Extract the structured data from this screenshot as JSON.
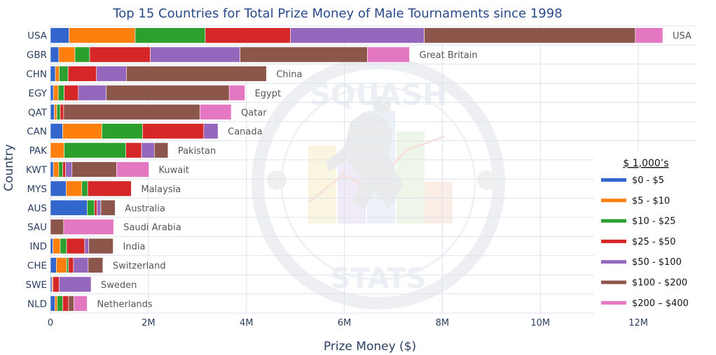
{
  "chart_data": {
    "type": "bar",
    "orientation": "horizontal",
    "stacked": true,
    "title": "Top 15 Countries for Total Prize Money of Male Tournaments since 1998",
    "xlabel": "Prize Money ($)",
    "ylabel": "Country",
    "xlim": [
      0,
      13200000
    ],
    "x_ticks": [
      {
        "value": 0,
        "label": "0"
      },
      {
        "value": 2000000,
        "label": "2M"
      },
      {
        "value": 4000000,
        "label": "4M"
      },
      {
        "value": 6000000,
        "label": "6M"
      },
      {
        "value": 8000000,
        "label": "8M"
      },
      {
        "value": 10000000,
        "label": "10M"
      },
      {
        "value": 12000000,
        "label": "12M"
      }
    ],
    "grid": true,
    "legend_title": "$ 1,000’s",
    "legend_position": "right",
    "categories": [
      "USA",
      "GBR",
      "CHN",
      "EGY",
      "QAT",
      "CAN",
      "PAK",
      "KWT",
      "MYS",
      "AUS",
      "SAU",
      "IND",
      "CHE",
      "SWE",
      "NLD"
    ],
    "bar_labels": [
      "USA",
      "Great Britain",
      "China",
      "Egypt",
      "Qatar",
      "Canada",
      "Pakistan",
      "Kuwait",
      "Malaysia",
      "Australia",
      "Saudi Arabia",
      "India",
      "Switzerland",
      "Sweden",
      "Netherlands"
    ],
    "series": [
      {
        "name": "$0 - $5",
        "color": "#3366cc",
        "values": [
          380000,
          170000,
          100000,
          60000,
          80000,
          250000,
          0,
          60000,
          320000,
          750000,
          0,
          50000,
          120000,
          30000,
          90000
        ]
      },
      {
        "name": "$5 - $10",
        "color": "#ff7f0e",
        "values": [
          1350000,
          330000,
          80000,
          100000,
          50000,
          800000,
          280000,
          110000,
          320000,
          0,
          0,
          150000,
          210000,
          20000,
          50000
        ]
      },
      {
        "name": "$10 - $25",
        "color": "#2ca02c",
        "values": [
          1430000,
          300000,
          180000,
          120000,
          70000,
          830000,
          1260000,
          80000,
          120000,
          150000,
          0,
          130000,
          40000,
          0,
          110000
        ]
      },
      {
        "name": "$25 - $50",
        "color": "#d62728",
        "values": [
          1740000,
          1240000,
          580000,
          290000,
          70000,
          1250000,
          320000,
          60000,
          890000,
          50000,
          0,
          370000,
          100000,
          130000,
          120000
        ]
      },
      {
        "name": "$50 - $100",
        "color": "#9467bd",
        "values": [
          2730000,
          1830000,
          610000,
          570000,
          0,
          290000,
          260000,
          130000,
          0,
          80000,
          0,
          80000,
          300000,
          650000,
          0
        ]
      },
      {
        "name": "$100 - $200",
        "color": "#8c564b",
        "values": [
          4310000,
          2600000,
          2860000,
          2510000,
          2780000,
          0,
          280000,
          910000,
          0,
          290000,
          270000,
          500000,
          300000,
          0,
          110000
        ]
      },
      {
        "name": "$200 – $400",
        "color": "#e377c2",
        "values": [
          560000,
          860000,
          0,
          320000,
          640000,
          0,
          0,
          660000,
          0,
          0,
          1020000,
          0,
          0,
          0,
          270000
        ]
      }
    ]
  },
  "watermark": {
    "top_text": "SQUASH",
    "bottom_text": "STATS"
  }
}
